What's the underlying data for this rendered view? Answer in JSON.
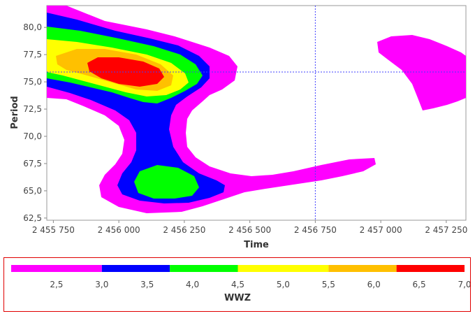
{
  "chart_data": {
    "type": "heatmap",
    "title": "",
    "xlabel": "Time",
    "ylabel": "Period",
    "xlim": [
      2455725,
      2457325
    ],
    "ylim": [
      62.3,
      82.0
    ],
    "x_ticks": [
      2455750,
      2456000,
      2456250,
      2456500,
      2456750,
      2457000,
      2457250
    ],
    "x_tick_labels": [
      "2 455 750",
      "2 456 000",
      "2 456 250",
      "2 456 500",
      "2 456 750",
      "2 457 000",
      "2 457 250"
    ],
    "y_ticks": [
      62.5,
      65.0,
      67.5,
      70.0,
      72.5,
      75.0,
      77.5,
      80.0
    ],
    "y_tick_labels": [
      "62,5",
      "65,0",
      "67,5",
      "70,0",
      "72,5",
      "75,0",
      "77,5",
      "80,0"
    ],
    "crosshair": {
      "x": 2456750,
      "y": 75.9
    },
    "grid": false,
    "colorbar": {
      "label": "WWZ",
      "range": [
        2.0,
        7.0
      ],
      "tick_values": [
        2.5,
        3.0,
        3.5,
        4.0,
        4.5,
        5.0,
        5.5,
        6.0,
        6.5,
        7.0
      ],
      "tick_labels": [
        "2,5",
        "3,0",
        "3,5",
        "4,0",
        "4,5",
        "5,0",
        "5,5",
        "6,0",
        "6,5",
        "7,0"
      ],
      "bands": [
        {
          "from": 2.0,
          "to": 3.0,
          "color": "#ff00ff"
        },
        {
          "from": 3.0,
          "to": 3.75,
          "color": "#0000ff"
        },
        {
          "from": 3.75,
          "to": 4.5,
          "color": "#00ff00"
        },
        {
          "from": 4.5,
          "to": 5.5,
          "color": "#ffff00"
        },
        {
          "from": 5.5,
          "to": 6.25,
          "color": "#ffc000"
        },
        {
          "from": 6.25,
          "to": 7.0,
          "color": "#ff0000"
        }
      ]
    },
    "colors": {
      "magenta": "#ff00ff",
      "blue": "#0000ff",
      "green": "#00ff00",
      "yellow": "#ffff00",
      "orange": "#ffc000",
      "red": "#ff0000",
      "crosshair": "#4040ff",
      "legend_border": "#e00000"
    }
  }
}
